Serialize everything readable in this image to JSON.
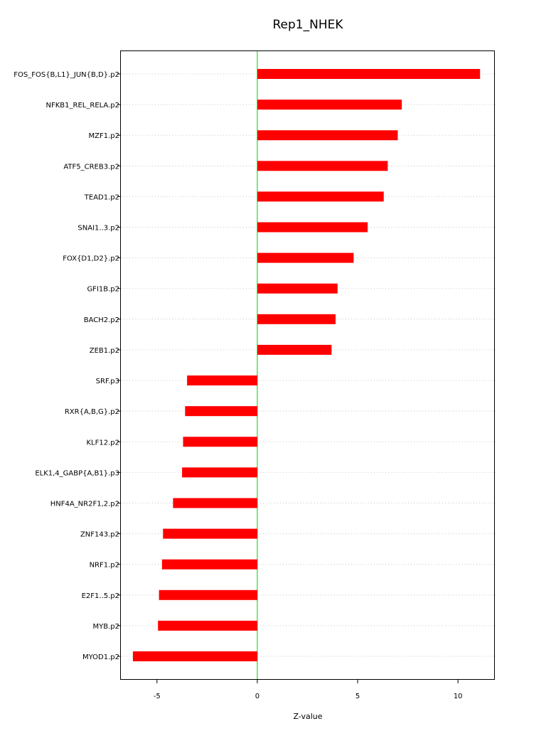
{
  "chart_data": {
    "type": "bar",
    "orientation": "horizontal",
    "title": "Rep1_NHEK",
    "xlabel": "Z-value",
    "ylabel": "",
    "xlim": [
      -6.8,
      11.8
    ],
    "xticks": [
      -5,
      0,
      5,
      10
    ],
    "xtick_labels": [
      "-5",
      "0",
      "5",
      "10"
    ],
    "grid": true,
    "bar_color": "#ff0000",
    "zero_line_color": "#00cc00",
    "categories": [
      "FOS_FOS{B,L1}_JUN{B,D}.p2",
      "NFKB1_REL_RELA.p2",
      "MZF1.p2",
      "ATF5_CREB3.p2",
      "TEAD1.p2",
      "SNAI1..3.p2",
      "FOX{D1,D2}.p2",
      "GFI1B.p2",
      "BACH2.p2",
      "ZEB1.p2",
      "SRF.p3",
      "RXR{A,B,G}.p2",
      "KLF12.p2",
      "ELK1,4_GABP{A,B1}.p3",
      "HNF4A_NR2F1,2.p2",
      "ZNF143.p2",
      "NRF1.p2",
      "E2F1..5.p2",
      "MYB.p2",
      "MYOD1.p2"
    ],
    "values": [
      11.1,
      7.2,
      7.0,
      6.5,
      6.3,
      5.5,
      4.8,
      4.0,
      3.9,
      3.7,
      -3.5,
      -3.6,
      -3.7,
      -3.75,
      -4.2,
      -4.7,
      -4.75,
      -4.9,
      -4.95,
      -6.2
    ]
  }
}
